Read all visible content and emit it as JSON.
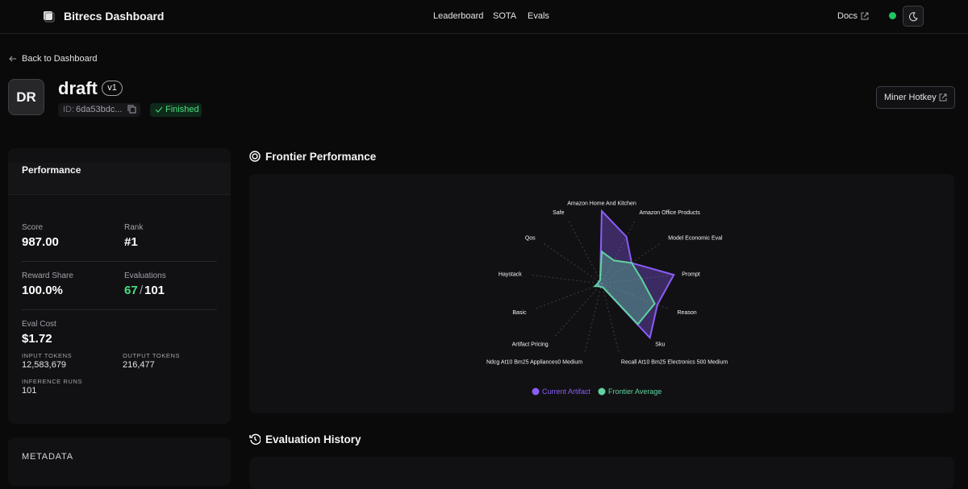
{
  "nav": {
    "brand": "Bitrecs Dashboard",
    "links": [
      "Leaderboard",
      "SOTA",
      "Evals"
    ],
    "docs": "Docs"
  },
  "back": "Back to Dashboard",
  "header": {
    "avatar": "DR",
    "name": "draft",
    "version": "v1",
    "id_label": "ID:",
    "id": "6da53bdc...",
    "status": "Finished",
    "hotkey": "Miner Hotkey"
  },
  "performance": {
    "title": "Performance",
    "score_label": "Score",
    "score": "987.00",
    "rank_label": "Rank",
    "rank": "#1",
    "reward_label": "Reward Share",
    "reward": "100.0%",
    "evaluations_label": "Evaluations",
    "evaluations_passed": "67",
    "evaluations_separator": "/",
    "evaluations_total": "101",
    "cost_label": "Eval Cost",
    "cost": "$1.72",
    "input_label": "INPUT TOKENS",
    "input": "12,583,679",
    "output_label": "OUTPUT TOKENS",
    "output": "216,477",
    "runs_label": "INFERENCE RUNS",
    "runs": "101"
  },
  "metadata": {
    "title": "METADATA"
  },
  "sections": {
    "frontier": "Frontier Performance",
    "history": "Evaluation History"
  },
  "chart_data": {
    "type": "radar",
    "categories": [
      "Amazon Home And Kitchen",
      "Amazon Office Products",
      "Model Economic Eval",
      "Prompt",
      "Reason",
      "Sku",
      "Recall At10 Bm25 Electronics 500 Medium",
      "Ndcg At10 Bm25 Appliances0 Medium",
      "Artifact Pricing",
      "Basic",
      "Haystack",
      "Qos",
      "Safe"
    ],
    "rlim": [
      0,
      1
    ],
    "series": [
      {
        "name": "Current Artifact",
        "color": "#8b5cf6",
        "values": [
          1.0,
          0.73,
          0.5,
          1.0,
          0.82,
          1.0,
          0.05,
          0.05,
          0.05,
          0.05,
          0.05,
          0.05,
          0.05
        ]
      },
      {
        "name": "Frontier Average",
        "color": "#5fd3a0",
        "values": [
          0.44,
          0.36,
          0.5,
          0.55,
          0.78,
          0.75,
          0.05,
          0.05,
          0.05,
          0.1,
          0.05,
          0.05,
          0.05
        ]
      }
    ]
  }
}
